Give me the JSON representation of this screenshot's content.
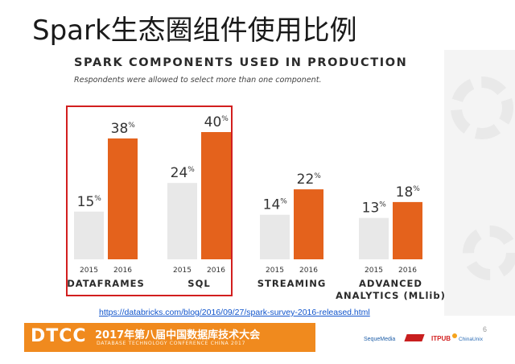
{
  "slide": {
    "title": "Spark生态圈组件使用比例",
    "source_url": "https://databricks.com/blog/2016/09/27/spark-survey-2016-released.html",
    "page_number": "6"
  },
  "footer": {
    "logo": "DTCC",
    "title_cn": "2017年第八届中国数据库技术大会",
    "title_en": "DATABASE TECHNOLOGY CONFERENCE CHINA 2017",
    "sponsors": [
      "SequeMedia",
      "IT168",
      "ITPUB",
      "ChinaUnix"
    ]
  },
  "colors": {
    "bar_2015": "#e8e8e8",
    "bar_2016": "#e4621c",
    "highlight_border": "#d21f1f",
    "footer_orange": "#f08a1e"
  },
  "chart_data": {
    "type": "bar",
    "title": "SPARK COMPONENTS USED IN PRODUCTION",
    "subtitle": "Respondents were allowed to select more than one component.",
    "groups": [
      {
        "label": "DATAFRAMES",
        "values": [
          {
            "year": "2015",
            "value": 15
          },
          {
            "year": "2016",
            "value": 38
          }
        ]
      },
      {
        "label": "SQL",
        "values": [
          {
            "year": "2015",
            "value": 24
          },
          {
            "year": "2016",
            "value": 40
          }
        ]
      },
      {
        "label": "STREAMING",
        "values": [
          {
            "year": "2015",
            "value": 14
          },
          {
            "year": "2016",
            "value": 22
          }
        ]
      },
      {
        "label": "ADVANCED\nANALYTICS (MLlib)",
        "values": [
          {
            "year": "2015",
            "value": 13
          },
          {
            "year": "2016",
            "value": 18
          }
        ]
      }
    ],
    "series": [
      {
        "name": "2015"
      },
      {
        "name": "2016"
      }
    ],
    "value_suffix": "%",
    "highlighted_groups": [
      "DATAFRAMES",
      "SQL"
    ],
    "ylim": [
      0,
      45
    ],
    "grid": false
  }
}
